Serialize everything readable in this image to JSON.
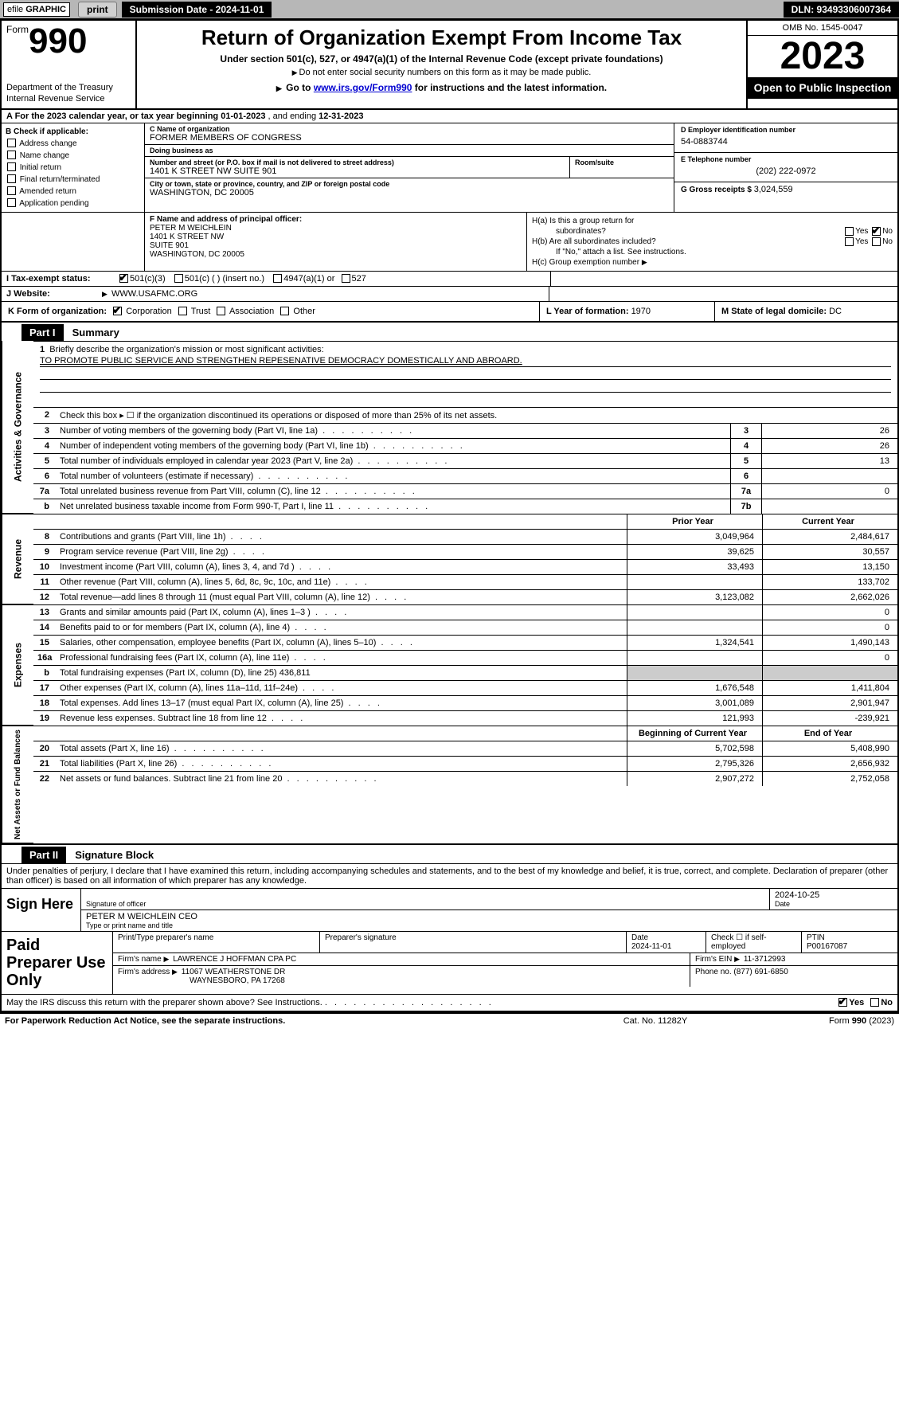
{
  "top": {
    "efile_prefix": "efile",
    "efile_bold": "GRAPHIC",
    "print": "print",
    "submission": "Submission Date - 2024-11-01",
    "dln": "DLN: 93493306007364"
  },
  "header": {
    "form_word": "Form",
    "form_num": "990",
    "dept": "Department of the Treasury\nInternal Revenue Service",
    "title": "Return of Organization Exempt From Income Tax",
    "sub1": "Under section 501(c), 527, or 4947(a)(1) of the Internal Revenue Code (except private foundations)",
    "sub2": "Do not enter social security numbers on this form as it may be made public.",
    "sub3_pre": "Go to ",
    "sub3_link": "www.irs.gov/Form990",
    "sub3_post": " for instructions and the latest information.",
    "omb": "OMB No. 1545-0047",
    "year": "2023",
    "inspection": "Open to Public Inspection"
  },
  "line_a": {
    "text_pre": "A For the 2023 calendar year, or tax year beginning ",
    "begin": "01-01-2023",
    "mid": "   , and ending ",
    "end": "12-31-2023"
  },
  "col_b": {
    "hdr": "B Check if applicable:",
    "items": [
      "Address change",
      "Name change",
      "Initial return",
      "Final return/terminated",
      "Amended return",
      "Application pending"
    ]
  },
  "col_c": {
    "name_lbl": "C Name of organization",
    "name_val": "FORMER MEMBERS OF CONGRESS",
    "dba_lbl": "Doing business as",
    "dba_val": "",
    "addr_lbl": "Number and street (or P.O. box if mail is not delivered to street address)",
    "addr_val": "1401 K STREET NW SUITE 901",
    "room_lbl": "Room/suite",
    "room_val": "",
    "city_lbl": "City or town, state or province, country, and ZIP or foreign postal code",
    "city_val": "WASHINGTON, DC  20005"
  },
  "col_d": {
    "ein_lbl": "D Employer identification number",
    "ein_val": "54-0883744",
    "tel_lbl": "E Telephone number",
    "tel_val": "(202) 222-0972",
    "gross_lbl": "G Gross receipts $ ",
    "gross_val": "3,024,559"
  },
  "col_f": {
    "lbl": "F  Name and address of principal officer:",
    "name": "PETER M WEICHLEIN",
    "addr1": "1401 K STREET NW",
    "addr2": "SUITE 901",
    "addr3": "WASHINGTON, DC  20005"
  },
  "col_h": {
    "ha": "H(a)  Is this a group return for",
    "ha2": "subordinates?",
    "hb": "H(b)  Are all subordinates included?",
    "hb2": "If \"No,\" attach a list. See instructions.",
    "hc": "H(c)  Group exemption number",
    "yes": "Yes",
    "no": "No"
  },
  "row_i": {
    "lbl": "I    Tax-exempt status:",
    "opt1": "501(c)(3)",
    "opt2": "501(c) (  ) (insert no.)",
    "opt3": "4947(a)(1) or",
    "opt4": "527"
  },
  "row_j": {
    "lbl": "J   Website:",
    "val": "WWW.USAFMC.ORG"
  },
  "row_k": {
    "k_lbl": "K Form of organization:",
    "k_opts": [
      "Corporation",
      "Trust",
      "Association",
      "Other"
    ],
    "l_lbl": "L Year of formation: ",
    "l_val": "1970",
    "m_lbl": "M State of legal domicile: ",
    "m_val": "DC"
  },
  "part1": {
    "hdr": "Part I",
    "title": "Summary"
  },
  "vtabs": {
    "gov": "Activities & Governance",
    "rev": "Revenue",
    "exp": "Expenses",
    "net": "Net Assets or Fund Balances"
  },
  "mission": {
    "num": "1",
    "lbl": "Briefly describe the organization's mission or most significant activities:",
    "text": "TO PROMOTE PUBLIC SERVICE AND STRENGTHEN REPESENATIVE DEMOCRACY DOMESTICALLY AND ABROARD."
  },
  "gov_rows": [
    {
      "n": "2",
      "d": "Check this box ▸ ☐  if the organization discontinued its operations or disposed of more than 25% of its net assets.",
      "box": "",
      "val": ""
    },
    {
      "n": "3",
      "d": "Number of voting members of the governing body (Part VI, line 1a)",
      "box": "3",
      "val": "26"
    },
    {
      "n": "4",
      "d": "Number of independent voting members of the governing body (Part VI, line 1b)",
      "box": "4",
      "val": "26"
    },
    {
      "n": "5",
      "d": "Total number of individuals employed in calendar year 2023 (Part V, line 2a)",
      "box": "5",
      "val": "13"
    },
    {
      "n": "6",
      "d": "Total number of volunteers (estimate if necessary)",
      "box": "6",
      "val": ""
    },
    {
      "n": "7a",
      "d": "Total unrelated business revenue from Part VIII, column (C), line 12",
      "box": "7a",
      "val": "0"
    },
    {
      "n": "b",
      "d": "Net unrelated business taxable income from Form 990-T, Part I, line 11",
      "box": "7b",
      "val": ""
    }
  ],
  "col_hdrs": {
    "prior": "Prior Year",
    "current": "Current Year",
    "begin": "Beginning of Current Year",
    "end": "End of Year"
  },
  "rev_rows": [
    {
      "n": "8",
      "d": "Contributions and grants (Part VIII, line 1h)",
      "p": "3,049,964",
      "c": "2,484,617"
    },
    {
      "n": "9",
      "d": "Program service revenue (Part VIII, line 2g)",
      "p": "39,625",
      "c": "30,557"
    },
    {
      "n": "10",
      "d": "Investment income (Part VIII, column (A), lines 3, 4, and 7d )",
      "p": "33,493",
      "c": "13,150"
    },
    {
      "n": "11",
      "d": "Other revenue (Part VIII, column (A), lines 5, 6d, 8c, 9c, 10c, and 11e)",
      "p": "",
      "c": "133,702"
    },
    {
      "n": "12",
      "d": "Total revenue—add lines 8 through 11 (must equal Part VIII, column (A), line 12)",
      "p": "3,123,082",
      "c": "2,662,026"
    }
  ],
  "exp_rows": [
    {
      "n": "13",
      "d": "Grants and similar amounts paid (Part IX, column (A), lines 1–3 )",
      "p": "",
      "c": "0"
    },
    {
      "n": "14",
      "d": "Benefits paid to or for members (Part IX, column (A), line 4)",
      "p": "",
      "c": "0"
    },
    {
      "n": "15",
      "d": "Salaries, other compensation, employee benefits (Part IX, column (A), lines 5–10)",
      "p": "1,324,541",
      "c": "1,490,143"
    },
    {
      "n": "16a",
      "d": "Professional fundraising fees (Part IX, column (A), line 11e)",
      "p": "",
      "c": "0"
    },
    {
      "n": "b",
      "d": "Total fundraising expenses (Part IX, column (D), line 25) 436,811",
      "p": "SHADE",
      "c": "SHADE"
    },
    {
      "n": "17",
      "d": "Other expenses (Part IX, column (A), lines 11a–11d, 11f–24e)",
      "p": "1,676,548",
      "c": "1,411,804"
    },
    {
      "n": "18",
      "d": "Total expenses. Add lines 13–17 (must equal Part IX, column (A), line 25)",
      "p": "3,001,089",
      "c": "2,901,947"
    },
    {
      "n": "19",
      "d": "Revenue less expenses. Subtract line 18 from line 12",
      "p": "121,993",
      "c": "-239,921"
    }
  ],
  "net_rows": [
    {
      "n": "20",
      "d": "Total assets (Part X, line 16)",
      "p": "5,702,598",
      "c": "5,408,990"
    },
    {
      "n": "21",
      "d": "Total liabilities (Part X, line 26)",
      "p": "2,795,326",
      "c": "2,656,932"
    },
    {
      "n": "22",
      "d": "Net assets or fund balances. Subtract line 21 from line 20",
      "p": "2,907,272",
      "c": "2,752,058"
    }
  ],
  "part2": {
    "hdr": "Part II",
    "title": "Signature Block"
  },
  "sig_decl": "Under penalties of perjury, I declare that I have examined this return, including accompanying schedules and statements, and to the best of my knowledge and belief, it is true, correct, and complete. Declaration of preparer (other than officer) is based on all information of which preparer has any knowledge.",
  "sign": {
    "lbl": "Sign Here",
    "sig_lbl": "Signature of officer",
    "date_lbl": "Date",
    "date_val": "2024-10-25",
    "officer": "PETER M WEICHLEIN  CEO",
    "name_lbl": "Type or print name and title"
  },
  "prep": {
    "lbl": "Paid Preparer Use Only",
    "pname_lbl": "Print/Type preparer's name",
    "pname_val": "",
    "psig_lbl": "Preparer's signature",
    "pdate_lbl": "Date",
    "pdate_val": "2024-11-01",
    "check_lbl": "Check ☐ if self-employed",
    "ptin_lbl": "PTIN",
    "ptin_val": "P00167087",
    "firm_name_lbl": "Firm's name    ",
    "firm_name_val": "LAWRENCE J HOFFMAN CPA PC",
    "firm_ein_lbl": "Firm's EIN  ",
    "firm_ein_val": "11-3712993",
    "firm_addr_lbl": "Firm's address ",
    "firm_addr1": "11067 WEATHERSTONE DR",
    "firm_addr2": "WAYNESBORO, PA  17268",
    "phone_lbl": "Phone no. ",
    "phone_val": "(877) 691-6850"
  },
  "discuss": {
    "q": "May the IRS discuss this return with the preparer shown above? See Instructions.",
    "yes": "Yes",
    "no": "No"
  },
  "footer": {
    "left": "For Paperwork Reduction Act Notice, see the separate instructions.",
    "mid": "Cat. No. 11282Y",
    "right_pre": "Form ",
    "right_bold": "990",
    "right_post": " (2023)"
  }
}
